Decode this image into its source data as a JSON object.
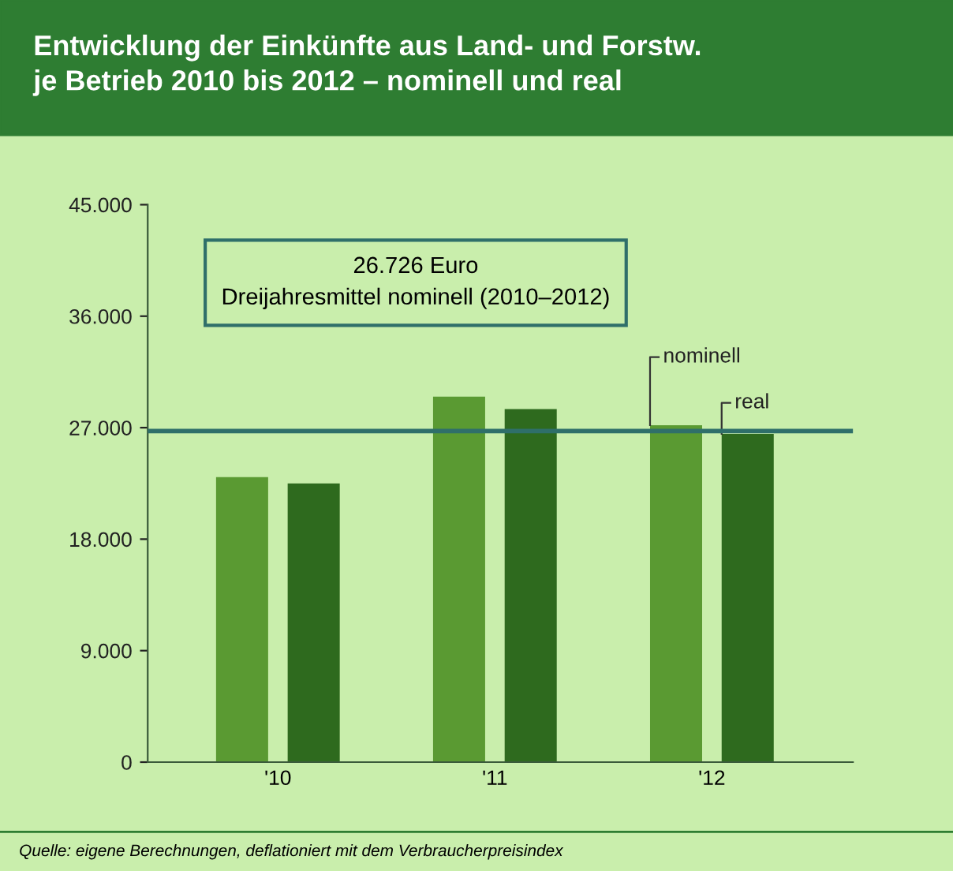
{
  "chart_data": {
    "type": "bar",
    "title": "Entwicklung der Einkünfte aus Land- und Forstw.\nje Betrieb 2010 bis 2012 – nominell und real",
    "categories": [
      "'10",
      "'11",
      "'12"
    ],
    "series": [
      {
        "name": "nominell",
        "color": "#5a9a32",
        "values": [
          23000,
          29500,
          27200
        ]
      },
      {
        "name": "real",
        "color": "#2e6a1e",
        "values": [
          22500,
          28500,
          26500
        ]
      }
    ],
    "ylim": [
      0,
      45000
    ],
    "yticks": [
      0,
      {
        "value": 9000,
        "label": "9.000"
      },
      {
        "value": 18000,
        "label": "18.000"
      },
      {
        "value": 27000,
        "label": "27.000"
      },
      {
        "value": 36000,
        "label": "36.000"
      },
      {
        "value": 45000,
        "label": "45.000"
      }
    ],
    "ref_lines": [
      {
        "axis": "y",
        "value": 26726,
        "color": "#2f6f6a"
      }
    ],
    "grid": false,
    "legend": false,
    "annotations": [
      "26.726 Euro\nDreijahresmittel nominell (2010–2012)",
      "Quelle: eigene Berechnungen, deflationiert mit dem Verbraucherpreisindex"
    ]
  }
}
